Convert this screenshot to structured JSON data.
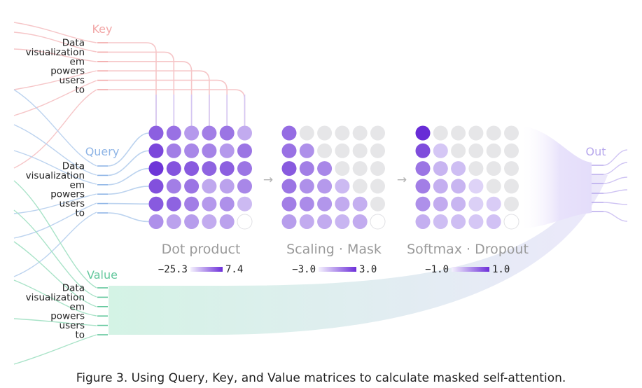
{
  "tokens": [
    "Data",
    "visualization",
    "em",
    "powers",
    "users",
    "to"
  ],
  "groups": {
    "key": {
      "label": "Key",
      "color": "#f2a7a7",
      "line": "#f6c6c8"
    },
    "query": {
      "label": "Query",
      "color": "#8fb5e6",
      "line": "#bcd3ef"
    },
    "value": {
      "label": "Value",
      "color": "#62c79c",
      "line": "#a9e3c8"
    },
    "out": {
      "label": "Out",
      "color": "#b7a8ec",
      "line": "#cfc4f3"
    }
  },
  "arrow_glyph": "→",
  "stages": [
    {
      "title": "Dot product",
      "legend_min": "−25.3",
      "legend_max": "7.4",
      "levels": [
        [
          0.72,
          0.62,
          0.4,
          0.55,
          0.6,
          0.3
        ],
        [
          0.85,
          0.55,
          0.5,
          0.52,
          0.4,
          0.6
        ],
        [
          0.95,
          0.78,
          0.75,
          0.7,
          0.72,
          0.6
        ],
        [
          0.8,
          0.55,
          0.6,
          0.32,
          0.35,
          0.5
        ],
        [
          0.75,
          0.7,
          0.55,
          0.4,
          0.45,
          0.22
        ],
        [
          0.45,
          0.35,
          0.38,
          0.3,
          0.35,
          0.0
        ]
      ]
    },
    {
      "title": "Scaling · Mask",
      "legend_min": "−3.0",
      "legend_max": "3.0",
      "levels": [
        [
          0.65,
          0.0,
          0.0,
          0.0,
          0.0,
          0.0
        ],
        [
          0.62,
          0.45,
          0.0,
          0.0,
          0.0,
          0.0
        ],
        [
          0.75,
          0.55,
          0.5,
          0.0,
          0.0,
          0.0
        ],
        [
          0.6,
          0.45,
          0.4,
          0.22,
          0.0,
          0.0
        ],
        [
          0.55,
          0.48,
          0.42,
          0.3,
          0.28,
          0.0
        ],
        [
          0.38,
          0.3,
          0.3,
          0.25,
          0.3,
          0.0
        ]
      ]
    },
    {
      "title": "Softmax · Dropout",
      "legend_min": "−1.0",
      "legend_max": "1.0",
      "levels": [
        [
          1.0,
          0.0,
          0.0,
          0.0,
          0.0,
          0.0
        ],
        [
          0.82,
          0.15,
          0.0,
          0.0,
          0.0,
          0.0
        ],
        [
          0.6,
          0.25,
          0.2,
          0.0,
          0.0,
          0.0
        ],
        [
          0.55,
          0.28,
          0.25,
          0.08,
          0.0,
          0.0
        ],
        [
          0.45,
          0.3,
          0.25,
          0.1,
          0.12,
          0.0
        ],
        [
          0.28,
          0.2,
          0.2,
          0.15,
          0.18,
          0.0
        ]
      ]
    }
  ],
  "caption": "Figure 3. Using Query, Key, and Value matrices to calculate masked self-attention."
}
